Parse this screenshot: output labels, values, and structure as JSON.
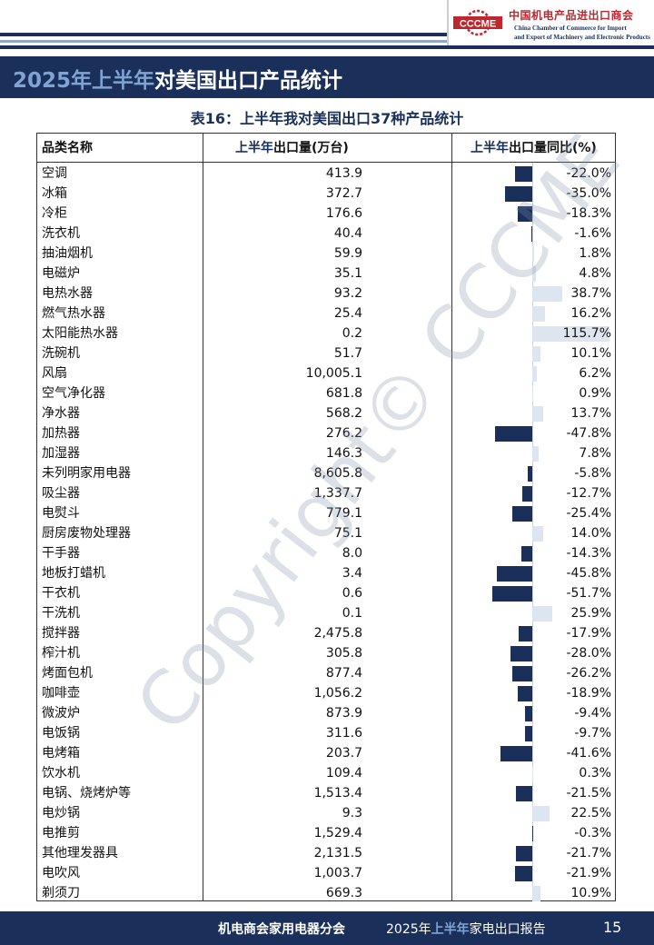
{
  "header": {
    "logo_abbr": "CCCME",
    "org_cn": "中国机电产品进出口商会",
    "org_en_line1": "China Chamber of Commerce for Import",
    "org_en_line2": "and Export of Machinery and Electronic Products"
  },
  "page_title": {
    "highlight": "2025年上半年",
    "rest": "对美国出口产品统计"
  },
  "table_title": "表16：上半年我对美国出口37种产品统计",
  "columns": {
    "name": "品类名称",
    "qty_highlight": "上半年",
    "qty_rest": "出口量(万台)",
    "yoy_highlight": "上半年",
    "yoy_rest": "出口量同比(%)"
  },
  "colors": {
    "navy": "#1a2f5a",
    "positive_bar": "#dde6f0",
    "negative_bar": "#1a2f5a"
  },
  "rows": [
    {
      "name": "空调",
      "qty": "413.9",
      "yoy": -22.0,
      "yoy_text": "-22.0%"
    },
    {
      "name": "冰箱",
      "qty": "372.7",
      "yoy": -35.0,
      "yoy_text": "-35.0%"
    },
    {
      "name": "冷柜",
      "qty": "176.6",
      "yoy": -18.3,
      "yoy_text": "-18.3%"
    },
    {
      "name": "洗衣机",
      "qty": "40.4",
      "yoy": -1.6,
      "yoy_text": "-1.6%"
    },
    {
      "name": "抽油烟机",
      "qty": "59.9",
      "yoy": 1.8,
      "yoy_text": "1.8%"
    },
    {
      "name": "电磁炉",
      "qty": "35.1",
      "yoy": 4.8,
      "yoy_text": "4.8%"
    },
    {
      "name": "电热水器",
      "qty": "93.2",
      "yoy": 38.7,
      "yoy_text": "38.7%"
    },
    {
      "name": "燃气热水器",
      "qty": "25.4",
      "yoy": 16.2,
      "yoy_text": "16.2%"
    },
    {
      "name": "太阳能热水器",
      "qty": "0.2",
      "yoy": 115.7,
      "yoy_text": "115.7%"
    },
    {
      "name": "洗碗机",
      "qty": "51.7",
      "yoy": 10.1,
      "yoy_text": "10.1%"
    },
    {
      "name": "风扇",
      "qty": "10,005.1",
      "yoy": 6.2,
      "yoy_text": "6.2%"
    },
    {
      "name": "空气净化器",
      "qty": "681.8",
      "yoy": 0.9,
      "yoy_text": "0.9%"
    },
    {
      "name": "净水器",
      "qty": "568.2",
      "yoy": 13.7,
      "yoy_text": "13.7%"
    },
    {
      "name": "加热器",
      "qty": "276.2",
      "yoy": -47.8,
      "yoy_text": "-47.8%"
    },
    {
      "name": "加湿器",
      "qty": "146.3",
      "yoy": 7.8,
      "yoy_text": "7.8%"
    },
    {
      "name": "未列明家用电器",
      "qty": "8,605.8",
      "yoy": -5.8,
      "yoy_text": "-5.8%"
    },
    {
      "name": "吸尘器",
      "qty": "1,337.7",
      "yoy": -12.7,
      "yoy_text": "-12.7%"
    },
    {
      "name": "电熨斗",
      "qty": "779.1",
      "yoy": -25.4,
      "yoy_text": "-25.4%"
    },
    {
      "name": "厨房废物处理器",
      "qty": "75.1",
      "yoy": 14.0,
      "yoy_text": "14.0%"
    },
    {
      "name": "干手器",
      "qty": "8.0",
      "yoy": -14.3,
      "yoy_text": "-14.3%"
    },
    {
      "name": "地板打蜡机",
      "qty": "3.4",
      "yoy": -45.8,
      "yoy_text": "-45.8%"
    },
    {
      "name": "干衣机",
      "qty": "0.6",
      "yoy": -51.7,
      "yoy_text": "-51.7%"
    },
    {
      "name": "干洗机",
      "qty": "0.1",
      "yoy": 25.9,
      "yoy_text": "25.9%"
    },
    {
      "name": "搅拌器",
      "qty": "2,475.8",
      "yoy": -17.9,
      "yoy_text": "-17.9%"
    },
    {
      "name": "榨汁机",
      "qty": "305.8",
      "yoy": -28.0,
      "yoy_text": "-28.0%"
    },
    {
      "name": "烤面包机",
      "qty": "877.4",
      "yoy": -26.2,
      "yoy_text": "-26.2%"
    },
    {
      "name": "咖啡壶",
      "qty": "1,056.2",
      "yoy": -18.9,
      "yoy_text": "-18.9%"
    },
    {
      "name": "微波炉",
      "qty": "873.9",
      "yoy": -9.4,
      "yoy_text": "-9.4%"
    },
    {
      "name": "电饭锅",
      "qty": "311.6",
      "yoy": -9.7,
      "yoy_text": "-9.7%"
    },
    {
      "name": "电烤箱",
      "qty": "203.7",
      "yoy": -41.6,
      "yoy_text": "-41.6%"
    },
    {
      "name": "饮水机",
      "qty": "109.4",
      "yoy": 0.3,
      "yoy_text": "0.3%"
    },
    {
      "name": "电锅、烧烤炉等",
      "qty": "1,513.4",
      "yoy": -21.5,
      "yoy_text": "-21.5%"
    },
    {
      "name": "电炒锅",
      "qty": "9.3",
      "yoy": 22.5,
      "yoy_text": "22.5%"
    },
    {
      "name": "电推剪",
      "qty": "1,529.4",
      "yoy": -0.3,
      "yoy_text": "-0.3%"
    },
    {
      "name": "其他理发器具",
      "qty": "2,131.5",
      "yoy": -21.7,
      "yoy_text": "-21.7%"
    },
    {
      "name": "电吹风",
      "qty": "1,003.7",
      "yoy": -21.9,
      "yoy_text": "-21.9%"
    },
    {
      "name": "剃须刀",
      "qty": "669.3",
      "yoy": 10.9,
      "yoy_text": "10.9%"
    }
  ],
  "watermark": "Copyright© CCCME",
  "footer": {
    "org": "机电商会家用电器分会",
    "report_pre": "2025年",
    "report_highlight": "上半年",
    "report_post": "家电出口报告",
    "page": "15"
  }
}
